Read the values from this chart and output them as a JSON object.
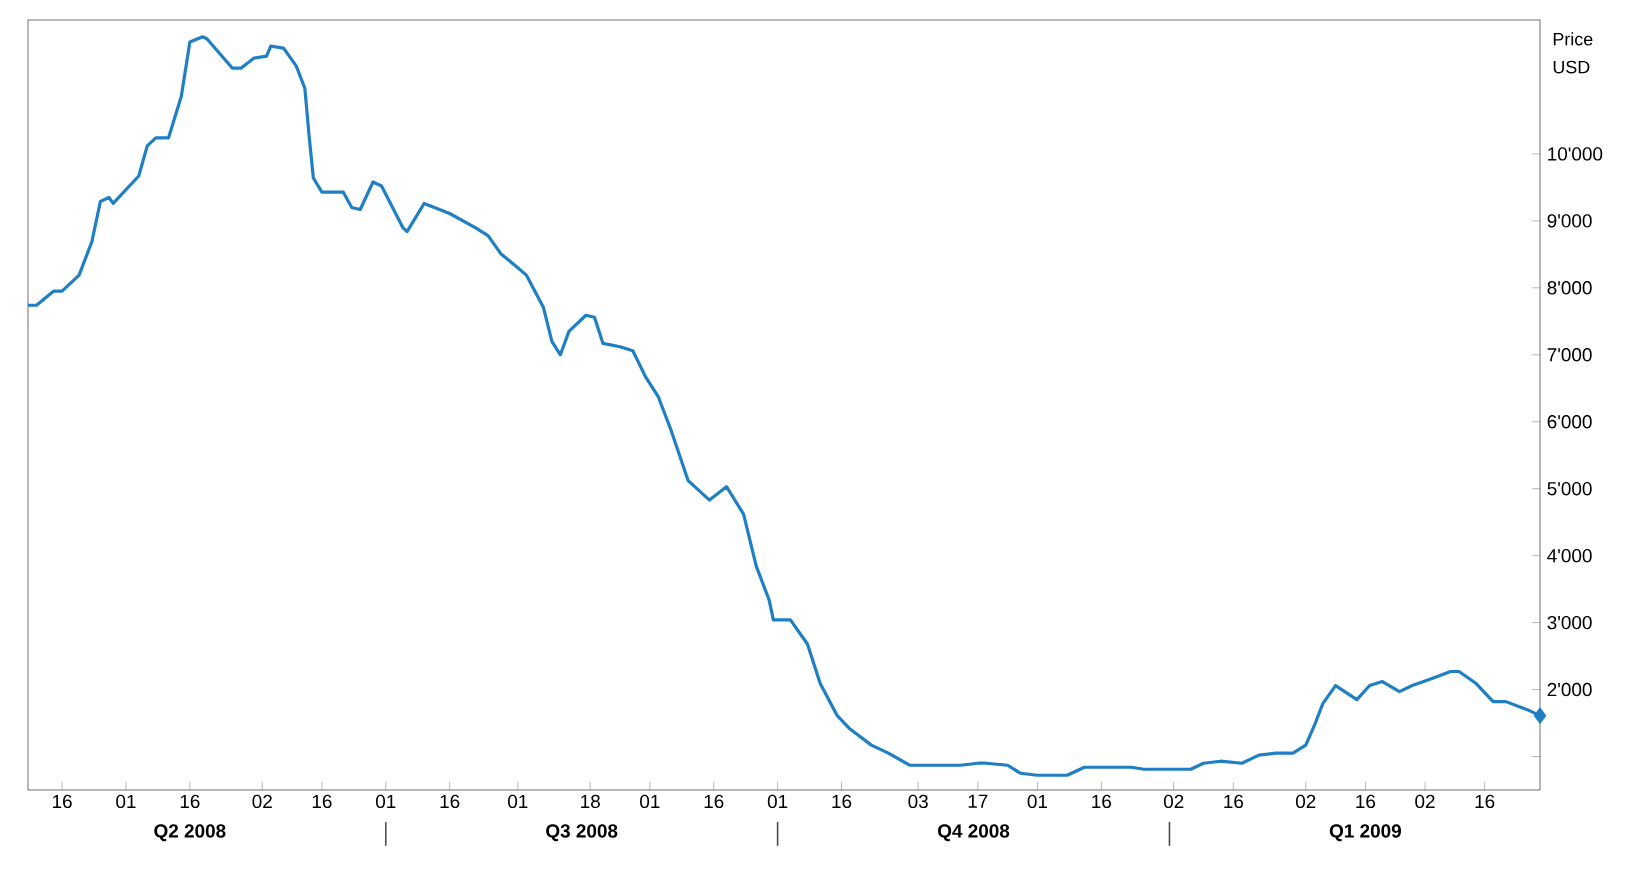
{
  "chart_data": {
    "type": "line",
    "ylabel": "Price USD",
    "xlim": [
      "2008-04-08",
      "2009-03-29"
    ],
    "ylim": [
      500,
      12000
    ],
    "xticks": [
      {
        "value": "2008-04-16",
        "label": "16"
      },
      {
        "value": "2008-05-01",
        "label": "01"
      },
      {
        "value": "2008-05-16",
        "label": "16"
      },
      {
        "value": "2008-06-02",
        "label": "02"
      },
      {
        "value": "2008-06-16",
        "label": "16"
      },
      {
        "value": "2008-07-01",
        "label": "01"
      },
      {
        "value": "2008-07-16",
        "label": "16"
      },
      {
        "value": "2008-08-01",
        "label": "01"
      },
      {
        "value": "2008-08-18",
        "label": "18"
      },
      {
        "value": "2008-09-01",
        "label": "01"
      },
      {
        "value": "2008-09-16",
        "label": "16"
      },
      {
        "value": "2008-10-01",
        "label": "01"
      },
      {
        "value": "2008-10-16",
        "label": "16"
      },
      {
        "value": "2008-11-03",
        "label": "03"
      },
      {
        "value": "2008-11-17",
        "label": "17"
      },
      {
        "value": "2008-12-01",
        "label": "01"
      },
      {
        "value": "2008-12-16",
        "label": "16"
      },
      {
        "value": "2009-01-02",
        "label": "02"
      },
      {
        "value": "2009-01-16",
        "label": "16"
      },
      {
        "value": "2009-02-02",
        "label": "02"
      },
      {
        "value": "2009-02-16",
        "label": "16"
      },
      {
        "value": "2009-03-02",
        "label": "02"
      },
      {
        "value": "2009-03-16",
        "label": "16"
      }
    ],
    "x2lim": [
      "2008-04-08",
      "2009-03-29"
    ],
    "x2ticks": [
      {
        "value": "2008-05-16",
        "label": "Q2 2008"
      },
      {
        "value": "2008-07-01",
        "label": null
      },
      {
        "value": "2008-08-16",
        "label": "Q3 2008"
      },
      {
        "value": "2008-10-01",
        "label": null
      },
      {
        "value": "2008-11-16",
        "label": "Q4 2008"
      },
      {
        "value": "2009-01-01",
        "label": null
      },
      {
        "value": "2009-02-16",
        "label": "Q1 2009"
      }
    ],
    "yticks": [
      {
        "value": 1000,
        "label": null
      },
      {
        "value": 2000,
        "label": "2'000"
      },
      {
        "value": 3000,
        "label": "3'000"
      },
      {
        "value": 4000,
        "label": "4'000"
      },
      {
        "value": 5000,
        "label": "5'000"
      },
      {
        "value": 6000,
        "label": "6'000"
      },
      {
        "value": 7000,
        "label": "7'000"
      },
      {
        "value": 8000,
        "label": "8'000"
      },
      {
        "value": 9000,
        "label": "9'000"
      },
      {
        "value": 10000,
        "label": "10'000"
      }
    ],
    "series": [
      {
        "color": "#1f7fc4",
        "x": [
          "2008-04-08",
          "2008-04-10",
          "2008-04-14",
          "2008-04-16",
          "2008-04-20",
          "2008-04-23",
          "2008-04-25",
          "2008-04-27",
          "2008-04-28",
          "2008-05-04",
          "2008-05-06",
          "2008-05-08",
          "2008-05-11",
          "2008-05-14",
          "2008-05-16",
          "2008-05-19",
          "2008-05-20",
          "2008-05-26",
          "2008-05-28",
          "2008-05-31",
          "2008-06-03",
          "2008-06-04",
          "2008-06-07",
          "2008-06-10",
          "2008-06-12",
          "2008-06-13",
          "2008-06-14",
          "2008-06-16",
          "2008-06-21",
          "2008-06-23",
          "2008-06-25",
          "2008-06-28",
          "2008-06-30",
          "2008-07-05",
          "2008-07-06",
          "2008-07-10",
          "2008-07-16",
          "2008-07-22",
          "2008-07-25",
          "2008-07-28",
          "2008-08-01",
          "2008-08-03",
          "2008-08-07",
          "2008-08-09",
          "2008-08-11",
          "2008-08-13",
          "2008-08-17",
          "2008-08-19",
          "2008-08-21",
          "2008-08-25",
          "2008-08-28",
          "2008-08-31",
          "2008-09-03",
          "2008-09-06",
          "2008-09-10",
          "2008-09-15",
          "2008-09-19",
          "2008-09-23",
          "2008-09-26",
          "2008-09-29",
          "2008-09-30",
          "2008-10-04",
          "2008-10-08",
          "2008-10-11",
          "2008-10-15",
          "2008-10-18",
          "2008-10-23",
          "2008-10-27",
          "2008-11-01",
          "2008-11-13",
          "2008-11-17",
          "2008-11-19",
          "2008-11-24",
          "2008-11-27",
          "2008-12-01",
          "2008-12-08",
          "2008-12-12",
          "2008-12-23",
          "2008-12-26",
          "2009-01-06",
          "2009-01-09",
          "2009-01-13",
          "2009-01-18",
          "2009-01-22",
          "2009-01-26",
          "2009-01-30",
          "2009-02-02",
          "2009-02-04",
          "2009-02-06",
          "2009-02-09",
          "2009-02-14",
          "2009-02-17",
          "2009-02-20",
          "2009-02-24",
          "2009-02-27",
          "2009-03-03",
          "2009-03-08",
          "2009-03-10",
          "2009-03-14",
          "2009-03-18",
          "2009-03-21",
          "2009-03-26",
          "2009-03-29"
        ],
        "values": [
          7740,
          7740,
          7950,
          7950,
          8190,
          8690,
          9290,
          9350,
          9260,
          9670,
          10120,
          10240,
          10240,
          10860,
          11670,
          11750,
          11720,
          11280,
          11280,
          11430,
          11460,
          11610,
          11580,
          11310,
          10980,
          10270,
          9640,
          9430,
          9430,
          9200,
          9170,
          9580,
          9520,
          8900,
          8840,
          9260,
          9110,
          8900,
          8780,
          8510,
          8300,
          8190,
          7710,
          7200,
          7000,
          7350,
          7590,
          7560,
          7170,
          7120,
          7060,
          6670,
          6370,
          5870,
          5120,
          4830,
          5030,
          4620,
          3840,
          3340,
          3040,
          3040,
          2680,
          2090,
          1610,
          1410,
          1170,
          1050,
          870,
          870,
          900,
          900,
          870,
          750,
          720,
          720,
          840,
          840,
          810,
          810,
          900,
          930,
          900,
          1020,
          1050,
          1050,
          1170,
          1460,
          1790,
          2060,
          1850,
          2060,
          2120,
          1970,
          2060,
          2150,
          2270,
          2270,
          2090,
          1820,
          1820,
          1700,
          1610
        ]
      },
      {
        "type": "scatter",
        "marker": "diamond",
        "color": "#1f7fc4",
        "x": [
          "2009-03-29"
        ],
        "values": [
          1610
        ]
      }
    ]
  }
}
